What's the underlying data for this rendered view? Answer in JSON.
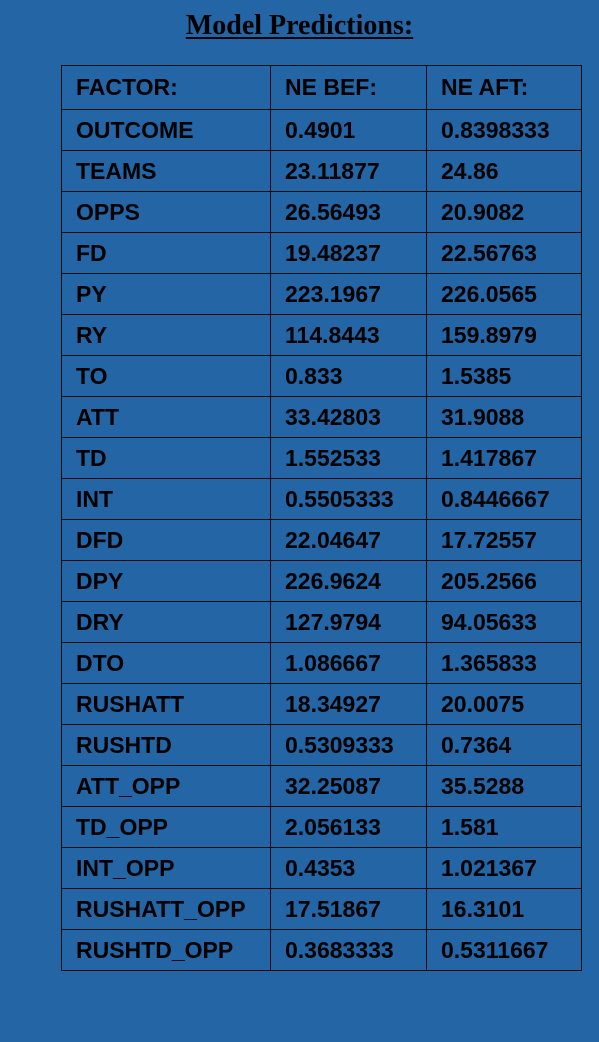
{
  "title": "Model Predictions:",
  "table": {
    "headers": [
      "FACTOR:",
      "NE BEF:",
      "NE AFT:"
    ],
    "rows": [
      [
        "OUTCOME",
        "0.4901",
        "0.8398333"
      ],
      [
        "TEAMS",
        "23.11877",
        "24.86"
      ],
      [
        "OPPS",
        "26.56493",
        "20.9082"
      ],
      [
        "FD",
        "19.48237",
        "22.56763"
      ],
      [
        "PY",
        "223.1967",
        "226.0565"
      ],
      [
        "RY",
        "114.8443",
        "159.8979"
      ],
      [
        "TO",
        "0.833",
        "1.5385"
      ],
      [
        "ATT",
        "33.42803",
        "31.9088"
      ],
      [
        "TD",
        "1.552533",
        "1.417867"
      ],
      [
        "INT",
        "0.5505333",
        "0.8446667"
      ],
      [
        "DFD",
        "22.04647",
        "17.72557"
      ],
      [
        "DPY",
        "226.9624",
        "205.2566"
      ],
      [
        "DRY",
        "127.9794",
        "94.05633"
      ],
      [
        "DTO",
        "1.086667",
        "1.365833"
      ],
      [
        "RUSHATT",
        "18.34927",
        "20.0075"
      ],
      [
        "RUSHTD",
        "0.5309333",
        "0.7364"
      ],
      [
        "ATT_OPP",
        "32.25087",
        "35.5288"
      ],
      [
        "TD_OPP",
        "2.056133",
        "1.581"
      ],
      [
        "INT_OPP",
        "0.4353",
        "1.021367"
      ],
      [
        "RUSHATT_OPP",
        "17.51867",
        "16.3101"
      ],
      [
        "RUSHTD_OPP",
        "0.3683333",
        "0.5311667"
      ]
    ]
  },
  "colors": {
    "background": "#2465a6",
    "text": "#000000",
    "border": "#0d0d0d"
  }
}
